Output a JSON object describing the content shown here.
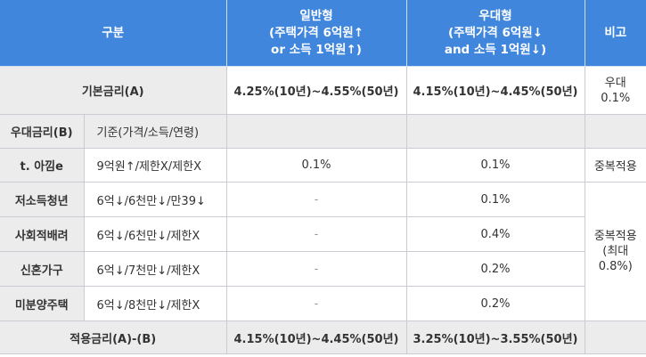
{
  "header": {
    "category": "구분",
    "general_line1": "일반형",
    "general_line2": "(주택가격 6억원↑",
    "general_line3": "or 소득 1억원↑)",
    "preferential_line1": "우대형",
    "preferential_line2": "(주택가격 6억원↓",
    "preferential_line3": "and 소득 1억원↓)",
    "note": "비고"
  },
  "basic_rate": {
    "label": "기본금리(A)",
    "general": "4.25%(10년)~4.55%(50년)",
    "preferential": "4.15%(10년)~4.45%(50년)",
    "note_line1": "우대",
    "note_line2": "0.1%"
  },
  "pref_header": {
    "label": "우대금리(B)",
    "criteria": "기준(가격/소득/연령)"
  },
  "rows": [
    {
      "label": "t. 아낌e",
      "criteria": "9억원↑/제한X/제한X",
      "general": "0.1%",
      "preferential": "0.1%",
      "note": "중복적용"
    },
    {
      "label": "저소득청년",
      "criteria": "6억↓/6천만↓/만39↓",
      "general": "-",
      "preferential": "0.1%"
    },
    {
      "label": "사회적배려",
      "criteria": "6억↓/6천만↓/제한X",
      "general": "-",
      "preferential": "0.4%"
    },
    {
      "label": "신혼가구",
      "criteria": "6억↓/7천만↓/제한X",
      "general": "-",
      "preferential": "0.2%"
    },
    {
      "label": "미분양주택",
      "criteria": "6억↓/8천만↓/제한X",
      "general": "-",
      "preferential": "0.2%"
    }
  ],
  "merged_note": {
    "line1": "중복적용",
    "line2": "(최대",
    "line3": "0.8%)"
  },
  "applied_rate": {
    "label": "적용금리(A)-(B)",
    "general": "4.15%(10년)~4.45%(50년)",
    "preferential": "3.25%(10년)~3.55%(50년)"
  },
  "colors": {
    "header_bg": "#3f86dc",
    "label_bg": "#ececec",
    "border": "#c9cdd3"
  }
}
